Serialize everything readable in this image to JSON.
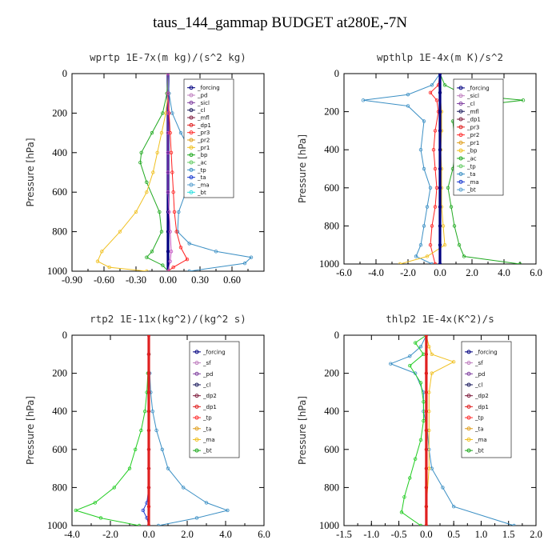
{
  "figure": {
    "title": "taus_144_gammap  BUDGET at280E,-7N"
  },
  "chart_data": [
    {
      "type": "line",
      "title": "wprtp  1E-7x(m kg)/(s^2 kg)",
      "ylabel": "Pressure [hPa]",
      "xlim": [
        -0.9,
        0.9
      ],
      "ylim": [
        1000,
        0
      ],
      "xticks": [
        "-0.90",
        "-0.60",
        "-0.30",
        "0.00",
        "0.30",
        "0.60"
      ],
      "xtick_values": [
        -0.9,
        -0.6,
        -0.3,
        0.0,
        0.3,
        0.6
      ],
      "yticks": [
        "0",
        "200",
        "400",
        "600",
        "800",
        "1000"
      ],
      "ytick_values": [
        0,
        200,
        400,
        600,
        800,
        1000
      ],
      "legend_position": "top-right",
      "legend": [
        "_forcing",
        "_pd",
        "_sicl",
        "_cl",
        "_mfl",
        "_dp1",
        "_pr3",
        "_pr2",
        "_pr1",
        "_bp",
        "_ac",
        "_tp",
        "_ta",
        "_ma",
        "_bt"
      ],
      "series": [
        {
          "name": "_forcing",
          "color": "#000080",
          "x": [
            0,
            0,
            0,
            0,
            0,
            0,
            0,
            0,
            0,
            0,
            0
          ],
          "y": [
            0,
            100,
            200,
            300,
            400,
            500,
            600,
            700,
            800,
            900,
            1000
          ]
        },
        {
          "name": "_tp",
          "color": "#3b8fc4",
          "x": [
            0,
            0.01,
            0.04,
            0.12,
            0.22,
            0.24,
            0.2,
            0.1,
            0.09,
            0.2,
            0.45,
            0.78,
            0.72,
            0.2
          ],
          "y": [
            0,
            100,
            200,
            300,
            400,
            450,
            550,
            700,
            800,
            860,
            900,
            930,
            960,
            1000
          ]
        },
        {
          "name": "_bp",
          "color": "#22aa22",
          "x": [
            0,
            -0.01,
            -0.05,
            -0.15,
            -0.25,
            -0.26,
            -0.2,
            -0.08,
            -0.06,
            -0.15,
            -0.2,
            -0.05,
            0
          ],
          "y": [
            0,
            100,
            200,
            300,
            400,
            450,
            550,
            700,
            800,
            900,
            930,
            970,
            1000
          ]
        },
        {
          "name": "_pr1",
          "color": "#f0c020",
          "x": [
            0,
            0,
            -0.02,
            -0.06,
            -0.1,
            -0.14,
            -0.2,
            -0.3,
            -0.45,
            -0.62,
            -0.66,
            -0.55,
            -0.2
          ],
          "y": [
            0,
            100,
            200,
            300,
            400,
            500,
            600,
            700,
            800,
            900,
            950,
            980,
            1000
          ]
        },
        {
          "name": "_ta",
          "color": "#ff2020",
          "x": [
            0,
            0,
            0.01,
            0.02,
            0.03,
            0.04,
            0.05,
            0.06,
            0.08,
            0.12,
            0.18,
            0.05,
            0
          ],
          "y": [
            0,
            100,
            200,
            300,
            400,
            500,
            600,
            700,
            800,
            880,
            940,
            980,
            1000
          ]
        },
        {
          "name": "_ma",
          "color": "#c050c0",
          "x": [
            0,
            0,
            0,
            0,
            0,
            0,
            0,
            0.01,
            0.02,
            0.03,
            0.02,
            0
          ],
          "y": [
            0,
            100,
            200,
            300,
            400,
            500,
            600,
            700,
            800,
            900,
            950,
            1000
          ]
        }
      ]
    },
    {
      "type": "line",
      "title": "wpthlp  1E-4x(m K)/s^2",
      "ylabel": "Pressure [hPa]",
      "xlim": [
        -6.0,
        6.0
      ],
      "ylim": [
        1000,
        0
      ],
      "xticks": [
        "-6.0",
        "-4.0",
        "-2.0",
        "0.0",
        "2.0",
        "4.0",
        "6.0"
      ],
      "xtick_values": [
        -6,
        -4,
        -2,
        0,
        2,
        4,
        6
      ],
      "yticks": [
        "0",
        "200",
        "400",
        "600",
        "800",
        "1000"
      ],
      "ytick_values": [
        0,
        200,
        400,
        600,
        800,
        1000
      ],
      "legend_position": "top-right",
      "legend": [
        "_forcing",
        "_sicl",
        "_cl",
        "_mfl",
        "_dp1",
        "_pr3",
        "_pr2",
        "_pr1",
        "_bp",
        "_ac",
        "_tp",
        "_ta",
        "_ma",
        "_bt"
      ],
      "series": [
        {
          "name": "_tp",
          "color": "#3b8fc4",
          "x": [
            0,
            -0.5,
            -2.0,
            -4.8,
            -2.0,
            -1.0,
            -1.2,
            -1.0,
            -0.6,
            -0.8,
            -1.0,
            -1.2,
            -1.5,
            -0.5
          ],
          "y": [
            0,
            60,
            110,
            140,
            170,
            250,
            400,
            500,
            600,
            700,
            800,
            900,
            960,
            1000
          ]
        },
        {
          "name": "_bp",
          "color": "#22aa22",
          "x": [
            0,
            0.3,
            1.5,
            5.2,
            2.0,
            0.8,
            1.0,
            0.8,
            0.5,
            0.7,
            0.9,
            1.2,
            1.5,
            5.0
          ],
          "y": [
            0,
            60,
            110,
            140,
            170,
            250,
            400,
            500,
            600,
            700,
            800,
            900,
            960,
            1000
          ]
        },
        {
          "name": "_ta",
          "color": "#ff2020",
          "x": [
            0,
            -0.1,
            -0.6,
            -0.2,
            -0.1,
            -0.3,
            -0.4,
            -0.3,
            -0.2,
            -0.3,
            -0.5,
            -0.6,
            -0.3
          ],
          "y": [
            0,
            60,
            100,
            140,
            200,
            300,
            400,
            500,
            600,
            700,
            800,
            900,
            1000
          ]
        },
        {
          "name": "_pr1",
          "color": "#f0c020",
          "x": [
            0,
            0,
            0.1,
            0.1,
            0.05,
            0.1,
            0.1,
            0.1,
            0.2,
            0.3,
            -0.8,
            -2.5
          ],
          "y": [
            0,
            100,
            200,
            300,
            400,
            500,
            600,
            700,
            800,
            900,
            960,
            1000
          ]
        },
        {
          "name": "_forcing",
          "color": "#000080",
          "x": [
            0,
            0,
            0,
            0,
            0,
            0,
            0,
            0,
            0,
            0,
            0
          ],
          "y": [
            0,
            100,
            200,
            300,
            400,
            500,
            600,
            700,
            800,
            900,
            1000
          ]
        }
      ]
    },
    {
      "type": "line",
      "title": "rtp2  1E-11x(kg^2)/(kg^2 s)",
      "ylabel": "Pressure [hPa]",
      "xlim": [
        -4.0,
        6.0
      ],
      "ylim": [
        1000,
        0
      ],
      "xticks": [
        "-4.0",
        "-2.0",
        "0.0",
        "2.0",
        "4.0",
        "6.0"
      ],
      "xtick_values": [
        -4,
        -2,
        0,
        2,
        4,
        6
      ],
      "yticks": [
        "0",
        "200",
        "400",
        "600",
        "800",
        "1000"
      ],
      "ytick_values": [
        0,
        200,
        400,
        600,
        800,
        1000
      ],
      "legend_position": "top-right",
      "legend": [
        "_forcing",
        "_sf",
        "_pd",
        "_cl",
        "_dp2",
        "_dp1",
        "_tp",
        "_ta",
        "_ma",
        "_bt"
      ],
      "series": [
        {
          "name": "_ma",
          "color": "#3b8fc4",
          "x": [
            0,
            0,
            0.05,
            0.1,
            0.2,
            0.4,
            0.7,
            1.0,
            1.8,
            3.0,
            4.1,
            2.5,
            0.5
          ],
          "y": [
            0,
            100,
            200,
            300,
            400,
            500,
            600,
            700,
            800,
            880,
            920,
            960,
            1000
          ]
        },
        {
          "name": "_dp1",
          "color": "#22cc22",
          "x": [
            0,
            0,
            -0.05,
            -0.1,
            -0.2,
            -0.4,
            -0.7,
            -1.0,
            -1.8,
            -2.8,
            -3.8,
            -2.5,
            -0.5
          ],
          "y": [
            0,
            100,
            200,
            300,
            400,
            500,
            600,
            700,
            800,
            880,
            920,
            960,
            1000
          ]
        },
        {
          "name": "_ta",
          "color": "#1a3ad0",
          "x": [
            0,
            0,
            0,
            0,
            0,
            0,
            0,
            0,
            0,
            -0.1,
            -0.3,
            -0.1,
            0
          ],
          "y": [
            0,
            100,
            200,
            300,
            400,
            500,
            600,
            700,
            800,
            880,
            920,
            960,
            1000
          ]
        },
        {
          "name": "_forcing",
          "color": "#e02020",
          "x": [
            0,
            0,
            0,
            0,
            0,
            0,
            0,
            0,
            0,
            0,
            0
          ],
          "y": [
            0,
            100,
            200,
            300,
            400,
            500,
            600,
            700,
            800,
            900,
            1000
          ]
        }
      ]
    },
    {
      "type": "line",
      "title": "thlp2  1E-4x(K^2)/s",
      "ylabel": "Pressure [hPa]",
      "xlim": [
        -1.5,
        2.0
      ],
      "ylim": [
        1000,
        0
      ],
      "xticks": [
        "-1.5",
        "-1.0",
        "-0.5",
        "0.0",
        "0.5",
        "1.0",
        "1.5",
        "2.0"
      ],
      "xtick_values": [
        -1.5,
        -1.0,
        -0.5,
        0.0,
        0.5,
        1.0,
        1.5,
        2.0
      ],
      "yticks": [
        "0",
        "200",
        "400",
        "600",
        "800",
        "1000"
      ],
      "ytick_values": [
        0,
        200,
        400,
        600,
        800,
        1000
      ],
      "legend_position": "top-right",
      "legend": [
        "_forcing",
        "_sf",
        "_pd",
        "_cl",
        "_dp2",
        "_dp1",
        "_tp",
        "_ta",
        "_ma",
        "_bt"
      ],
      "series": [
        {
          "name": "_ma",
          "color": "#3b8fc4",
          "x": [
            0,
            -0.1,
            -0.3,
            -0.65,
            -0.2,
            -0.05,
            -0.05,
            0.02,
            0.05,
            0.1,
            0.3,
            0.5,
            1.6
          ],
          "y": [
            0,
            60,
            110,
            150,
            200,
            300,
            400,
            500,
            600,
            700,
            800,
            900,
            1000
          ]
        },
        {
          "name": "_dp1",
          "color": "#22cc22",
          "x": [
            0,
            -0.2,
            -0.05,
            -0.3,
            -0.1,
            -0.05,
            -0.05,
            -0.1,
            -0.2,
            -0.3,
            -0.4,
            -0.45,
            -0.1
          ],
          "y": [
            0,
            40,
            100,
            160,
            250,
            350,
            450,
            550,
            650,
            750,
            850,
            930,
            1000
          ]
        },
        {
          "name": "_cl",
          "color": "#f0c020",
          "x": [
            0,
            0.05,
            0.1,
            0.5,
            0.1,
            0.05,
            0.05,
            0.05,
            0.05,
            0,
            0
          ],
          "y": [
            0,
            60,
            100,
            140,
            200,
            300,
            400,
            500,
            700,
            900,
            1000
          ]
        },
        {
          "name": "_forcing",
          "color": "#e02020",
          "x": [
            0,
            0,
            0,
            0,
            0,
            0,
            0,
            0,
            0,
            0,
            0
          ],
          "y": [
            0,
            100,
            200,
            300,
            400,
            500,
            600,
            700,
            800,
            900,
            1000
          ]
        }
      ]
    }
  ]
}
